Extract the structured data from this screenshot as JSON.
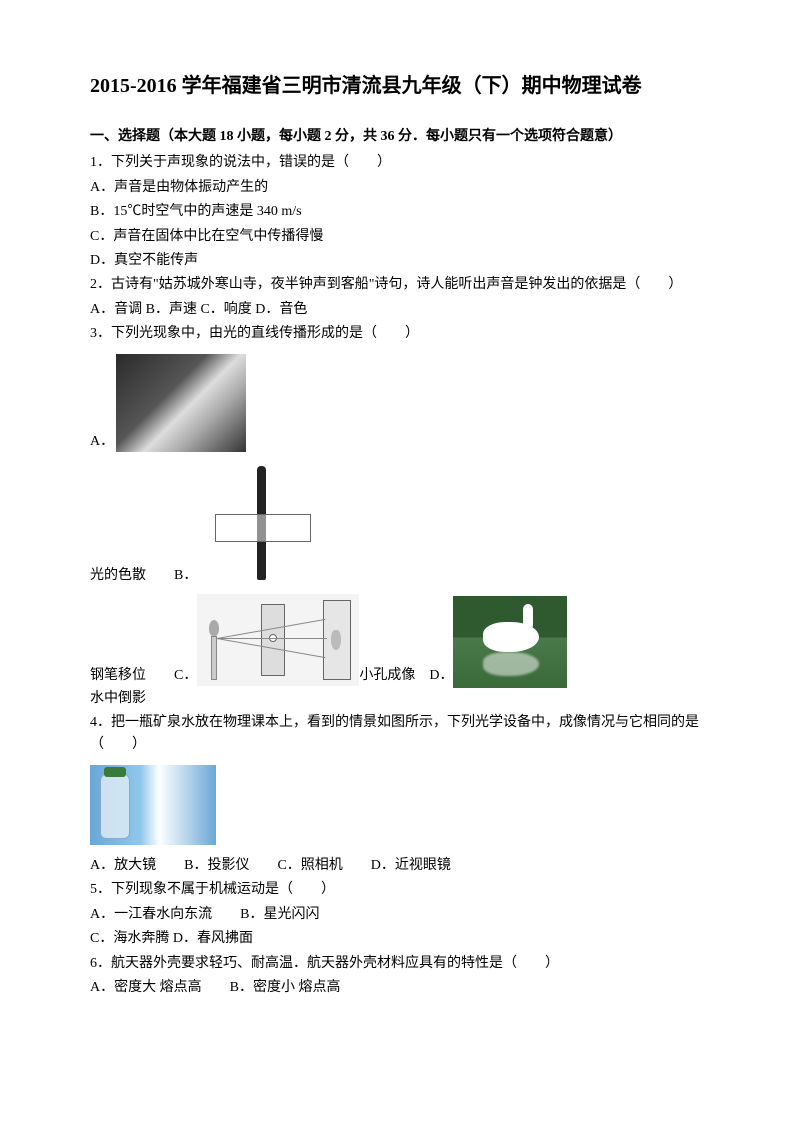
{
  "title": "2015-2016 学年福建省三明市清流县九年级（下）期中物理试卷",
  "section1": {
    "header": "一、选择题（本大题 18 小题，每小题 2 分，共 36 分．每小题只有一个选项符合题意）"
  },
  "q1": {
    "stem": "1．下列关于声现象的说法中，错误的是（　　）",
    "A": "A．声音是由物体振动产生的",
    "B": "B．15℃时空气中的声速是 340 m/s",
    "C": "C．声音在固体中比在空气中传播得慢",
    "D": "D．真空不能传声"
  },
  "q2": {
    "stem": "2．古诗有\"姑苏城外寒山寺，夜半钟声到客船\"诗句，诗人能听出声音是钟发出的依据是（　　）",
    "options": "A．音调  B．声速  C．响度  D．音色"
  },
  "q3": {
    "stem": "3．下列光现象中，由光的直线传播形成的是（　　）",
    "A_prefix": "A．",
    "A_label": "光的色散　　B．",
    "B_label": "钢笔移位　　C．",
    "C_label": "小孔成像　D．",
    "D_label": "水中倒影"
  },
  "q4": {
    "stem": "4．把一瓶矿泉水放在物理课本上，看到的情景如图所示，下列光学设备中，成像情况与它相同的是（　　）",
    "options": "A．放大镜　　B．投影仪　　C．照相机　　D．近视眼镜"
  },
  "q5": {
    "stem": "5．下列现象不属于机械运动是（　　）",
    "line1": "A．一江春水向东流　　B．星光闪闪",
    "line2": "C．海水奔腾  D．春风拂面"
  },
  "q6": {
    "stem": "6．航天器外壳要求轻巧、耐高温．航天器外壳材料应具有的特性是（　　）",
    "options": "A．密度大 熔点高　　B．密度小 熔点高"
  }
}
